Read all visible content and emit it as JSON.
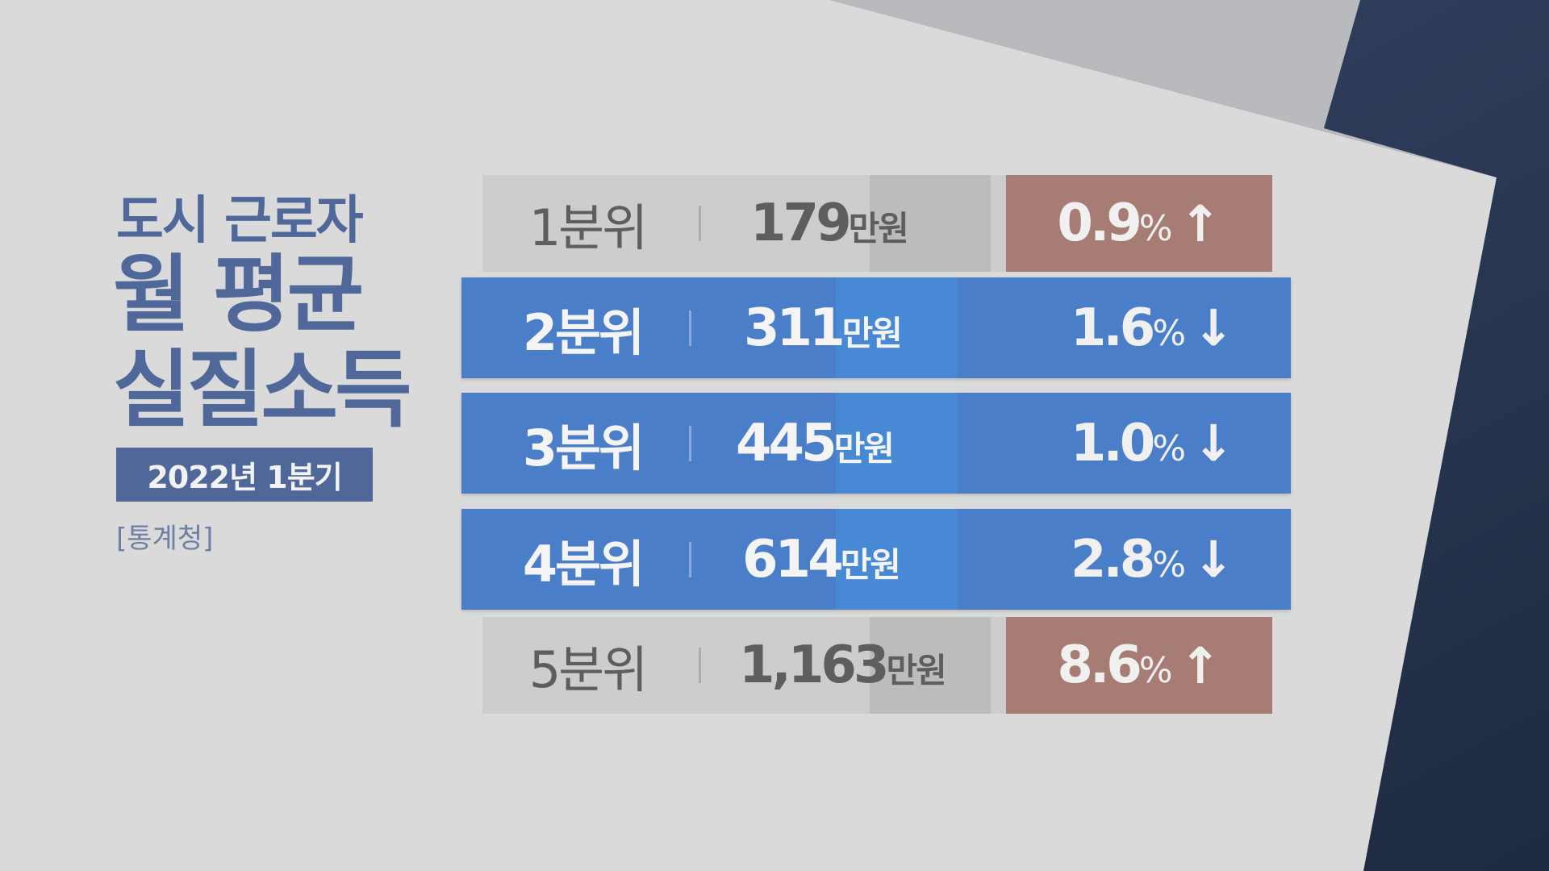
{
  "title": {
    "line1": "도시 근로자",
    "line2": "월 평균",
    "line3": "실질소득",
    "period": "2022년 1분기",
    "source": "[통계청]"
  },
  "colors": {
    "title": "#4f6899",
    "increase_box": "#a67c74",
    "decrease_row": "#4a7ec8",
    "neutral_row": "#c8c8c8"
  },
  "rows": [
    {
      "quintile": "1분위",
      "income": "179",
      "income_unit": "만원",
      "change": "0.9",
      "change_unit": "%",
      "direction": "up",
      "arrow": "↑"
    },
    {
      "quintile": "2분위",
      "income": "311",
      "income_unit": "만원",
      "change": "1.6",
      "change_unit": "%",
      "direction": "down",
      "arrow": "↓"
    },
    {
      "quintile": "3분위",
      "income": "445",
      "income_unit": "만원",
      "change": "1.0",
      "change_unit": "%",
      "direction": "down",
      "arrow": "↓"
    },
    {
      "quintile": "4분위",
      "income": "614",
      "income_unit": "만원",
      "change": "2.8",
      "change_unit": "%",
      "direction": "down",
      "arrow": "↓"
    },
    {
      "quintile": "5분위",
      "income": "1,163",
      "income_unit": "만원",
      "change": "8.6",
      "change_unit": "%",
      "direction": "up",
      "arrow": "↑"
    }
  ]
}
